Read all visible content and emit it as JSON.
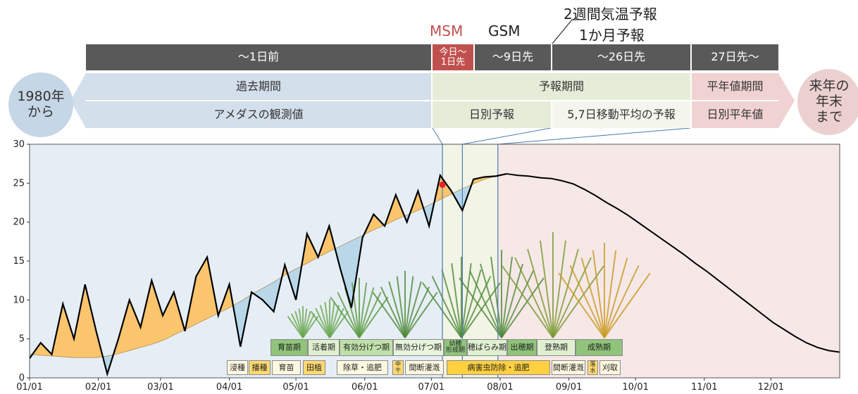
{
  "chart_data": {
    "type": "line",
    "xlim": [
      0,
      365
    ],
    "xticks": [
      {
        "value": 0,
        "label": "01/01"
      },
      {
        "value": 31,
        "label": "02/01"
      },
      {
        "value": 59,
        "label": "03/01"
      },
      {
        "value": 90,
        "label": "04/01"
      },
      {
        "value": 120,
        "label": "05/01"
      },
      {
        "value": 151,
        "label": "06/01"
      },
      {
        "value": 181,
        "label": "07/01"
      },
      {
        "value": 212,
        "label": "08/01"
      },
      {
        "value": 243,
        "label": "09/01"
      },
      {
        "value": 273,
        "label": "10/01"
      },
      {
        "value": 304,
        "label": "11/01"
      },
      {
        "value": 334,
        "label": "12/01"
      }
    ],
    "ylim": [
      0,
      30
    ],
    "yticks": [
      0,
      5,
      10,
      15,
      20,
      25,
      30
    ],
    "x": [
      0,
      5,
      10,
      15,
      20,
      25,
      30,
      35,
      40,
      45,
      50,
      55,
      60,
      65,
      70,
      75,
      80,
      85,
      90,
      95,
      100,
      105,
      110,
      115,
      120,
      125,
      130,
      135,
      140,
      145,
      150,
      155,
      160,
      165,
      170,
      175,
      180,
      185,
      190,
      195,
      200,
      205,
      210,
      215,
      220,
      225,
      230,
      235,
      240,
      245,
      250,
      255,
      260,
      265,
      270,
      275,
      280,
      285,
      290,
      295,
      300,
      305,
      310,
      315,
      320,
      325,
      330,
      335,
      340,
      345,
      350,
      355,
      360,
      365
    ],
    "series": [
      {
        "color": "#000000",
        "values": [
          2.5,
          4.5,
          3.0,
          9.5,
          5.0,
          12.0,
          6.0,
          0.5,
          5.0,
          10.0,
          6.5,
          12.5,
          8.0,
          11.0,
          6.0,
          13.0,
          15.5,
          8.0,
          12.0,
          4.0,
          11.0,
          10.0,
          8.5,
          14.5,
          10.0,
          18.5,
          15.5,
          19.5,
          14.0,
          9.0,
          18.0,
          21.0,
          19.5,
          23.5,
          20.0,
          24.0,
          19.5,
          26.0,
          24.0,
          21.5,
          25.5,
          25.8,
          25.9,
          26.2,
          null,
          null,
          null,
          null,
          null,
          null,
          null,
          null,
          null,
          null,
          null,
          null,
          null,
          null,
          null,
          null,
          null,
          null,
          null,
          null,
          null,
          null,
          null,
          null,
          null,
          null,
          null,
          null,
          null,
          null
        ]
      },
      {
        "color": "#000000",
        "values": [
          3.0,
          2.9,
          2.8,
          2.7,
          2.6,
          2.6,
          2.6,
          2.8,
          3.1,
          3.5,
          3.9,
          4.3,
          4.8,
          5.5,
          6.2,
          6.9,
          7.6,
          8.3,
          9.0,
          9.8,
          10.7,
          11.5,
          12.3,
          13.2,
          14.0,
          14.7,
          15.5,
          16.2,
          16.9,
          17.6,
          18.3,
          19.0,
          19.6,
          20.3,
          20.9,
          21.5,
          22.2,
          22.9,
          23.6,
          24.3,
          24.9,
          25.5,
          25.9,
          26.2,
          26.0,
          25.9,
          25.7,
          25.6,
          25.3,
          24.9,
          24.2,
          23.4,
          22.5,
          21.7,
          20.8,
          19.8,
          18.8,
          17.8,
          16.8,
          15.8,
          14.7,
          13.7,
          12.6,
          11.5,
          10.4,
          9.3,
          8.2,
          7.1,
          6.2,
          5.3,
          4.5,
          3.9,
          3.5,
          3.3
        ]
      }
    ],
    "above_color": "#fbc56e",
    "below_color": "#b8d8ea",
    "markers": [
      186,
      195,
      211
    ],
    "today": {
      "x": 186,
      "value": 24.8,
      "color": "#e8202a"
    }
  },
  "header": {
    "models": [
      "MSM",
      "GSM"
    ],
    "forecast_labels": [
      "2週間気温予報",
      "1か月予報"
    ],
    "lead_times": [
      "～1日前",
      "今日～\n1日先",
      "～9日先",
      "～26日先",
      "27日先～"
    ],
    "periods": [
      "過去期間",
      "予報期間",
      "平年値期間"
    ],
    "sources": [
      "アメダスの観測値",
      "日別予報",
      "5,7日移動平均の予報",
      "日別平年値"
    ],
    "start": "1980年\nから",
    "end": "来年の\n年末\nまで"
  },
  "stages": {
    "growth": [
      "育苗期",
      "活着期",
      "有効分げつ期",
      "無効分げつ期",
      "幼穂\n形成期",
      "穂ばらみ期",
      "出穂期",
      "登熟期",
      "成熟期"
    ],
    "work": [
      "浸種",
      "播種",
      "育苗",
      "田植",
      "除草・追肥",
      "中\n干",
      "間断灌漑",
      "病害虫防除・追肥",
      "間断灌漑",
      "落\n水",
      "刈取"
    ]
  }
}
